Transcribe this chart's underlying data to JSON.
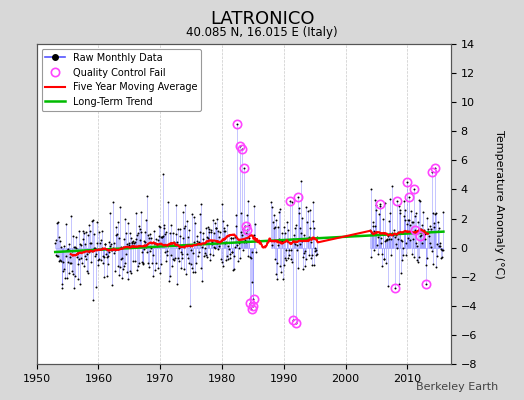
{
  "title": "LATRONICO",
  "subtitle": "40.085 N, 16.015 E (Italy)",
  "ylabel": "Temperature Anomaly (°C)",
  "watermark": "Berkeley Earth",
  "xlim": [
    1950,
    2017
  ],
  "ylim": [
    -8,
    14
  ],
  "yticks": [
    -8,
    -6,
    -4,
    -2,
    0,
    2,
    4,
    6,
    8,
    10,
    12,
    14
  ],
  "xticks": [
    1950,
    1960,
    1970,
    1980,
    1990,
    2000,
    2010
  ],
  "background_color": "#d8d8d8",
  "plot_bg_color": "#ffffff",
  "raw_line_color": "#5555ff",
  "raw_dot_color": "#000000",
  "qc_fail_color": "#ff44ff",
  "moving_avg_color": "#ff0000",
  "trend_color": "#00bb00",
  "seed": 42,
  "noise_std": 1.3
}
